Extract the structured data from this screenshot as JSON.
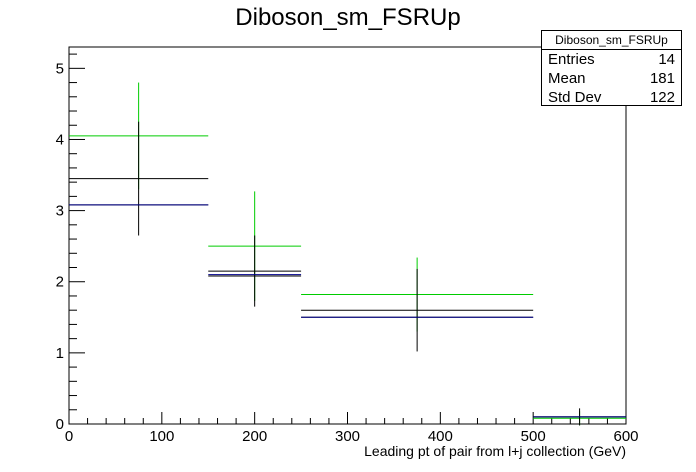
{
  "chart_data": {
    "type": "histogram",
    "title": "Diboson_sm_FSRUp",
    "xlabel": "Leading pt of pair from l+j collection (GeV)",
    "ylabel": "",
    "xlim": [
      0,
      600
    ],
    "ylim": [
      0,
      5.3
    ],
    "xticks": [
      "0",
      "100",
      "200",
      "300",
      "400",
      "500",
      "600"
    ],
    "yticks": [
      "0",
      "1",
      "2",
      "3",
      "4",
      "5"
    ],
    "bins": [
      {
        "low": 0,
        "high": 150
      },
      {
        "low": 150,
        "high": 250
      },
      {
        "low": 250,
        "high": 500
      },
      {
        "low": 500,
        "high": 600
      }
    ],
    "series": [
      {
        "color": "#00cc00",
        "values": [
          4.05,
          2.5,
          1.82,
          0.08
        ],
        "errors": [
          0.75,
          0.77,
          0.52,
          0.1
        ]
      },
      {
        "color": "#000000",
        "values": [
          3.45,
          2.15,
          1.6,
          0.1
        ],
        "errors": [
          0.8,
          0.5,
          0.58,
          0.12
        ]
      },
      {
        "color": "#000000",
        "values": [
          3.08,
          2.08,
          1.5,
          0.1
        ],
        "errors": [
          0,
          0,
          0,
          0
        ]
      },
      {
        "color": "#00008b",
        "values": [
          3.08,
          2.1,
          1.5,
          0.1
        ],
        "errors": [
          0,
          0,
          0,
          0
        ]
      }
    ],
    "grid": false,
    "legend": "none"
  },
  "stats": {
    "title": "Diboson_sm_FSRUp",
    "rows": [
      {
        "label": "Entries",
        "value": "14"
      },
      {
        "label": "Mean",
        "value": "181"
      },
      {
        "label": "Std Dev",
        "value": "122"
      }
    ]
  }
}
